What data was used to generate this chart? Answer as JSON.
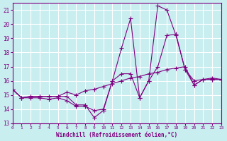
{
  "xlabel": "Windchill (Refroidissement éolien,°C)",
  "background_color": "#c8eef0",
  "grid_color": "#ffffff",
  "line_color": "#800080",
  "xlim": [
    0,
    23
  ],
  "ylim": [
    13,
    21.5
  ],
  "yticks": [
    13,
    14,
    15,
    16,
    17,
    18,
    19,
    20,
    21
  ],
  "xticks": [
    0,
    1,
    2,
    3,
    4,
    5,
    6,
    7,
    8,
    9,
    10,
    11,
    12,
    13,
    14,
    15,
    16,
    17,
    18,
    19,
    20,
    21,
    22,
    23
  ],
  "lines": [
    {
      "x": [
        0,
        1,
        2,
        3,
        4,
        5,
        6,
        7,
        8,
        9,
        10,
        11,
        12,
        13,
        14,
        15,
        16,
        17,
        18,
        19,
        20,
        21,
        22,
        23
      ],
      "y": [
        15.4,
        14.8,
        14.8,
        14.8,
        14.7,
        14.8,
        14.6,
        14.2,
        14.2,
        13.9,
        14.0,
        16.0,
        16.5,
        16.5,
        14.8,
        16.0,
        17.0,
        19.2,
        19.3,
        16.8,
        15.7,
        16.1,
        16.1,
        16.1
      ]
    },
    {
      "x": [
        0,
        1,
        2,
        3,
        4,
        5,
        6,
        7,
        8,
        9,
        10,
        11,
        12,
        13,
        14,
        15,
        16,
        17,
        18,
        19,
        20,
        21,
        22,
        23
      ],
      "y": [
        15.4,
        14.8,
        14.9,
        14.9,
        14.9,
        14.9,
        14.9,
        14.3,
        14.3,
        13.4,
        13.9,
        16.0,
        18.3,
        20.4,
        14.8,
        16.0,
        21.3,
        21.0,
        19.2,
        16.8,
        16.0,
        16.1,
        16.2,
        16.1
      ]
    },
    {
      "x": [
        0,
        1,
        2,
        3,
        4,
        5,
        6,
        7,
        8,
        9,
        10,
        11,
        12,
        13,
        14,
        15,
        16,
        17,
        18,
        19,
        20,
        21,
        22,
        23
      ],
      "y": [
        15.4,
        14.8,
        14.9,
        14.9,
        14.9,
        14.9,
        15.2,
        15.0,
        15.3,
        15.4,
        15.6,
        15.8,
        16.0,
        16.2,
        16.3,
        16.5,
        16.6,
        16.8,
        16.9,
        17.0,
        15.7,
        16.1,
        16.1,
        16.1
      ]
    }
  ]
}
